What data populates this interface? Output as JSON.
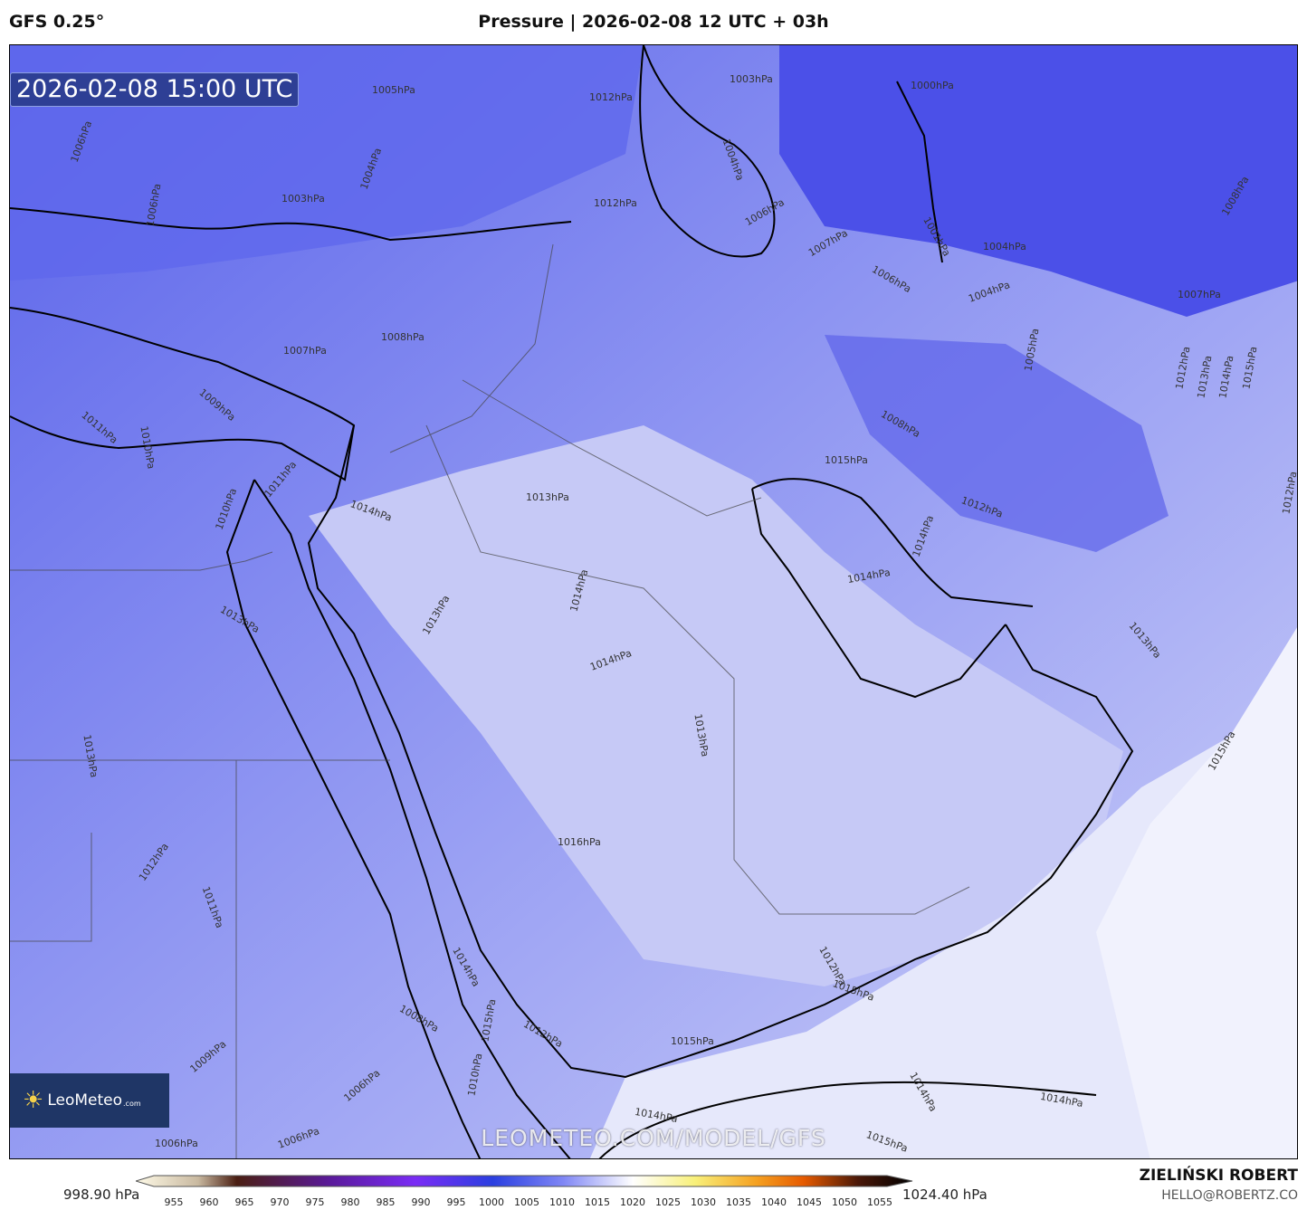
{
  "header": {
    "model": "GFS 0.25°",
    "title": "Pressure | 2026-02-08 12 UTC + 03h"
  },
  "map": {
    "valid_time": "2026-02-08 15:00 UTC",
    "watermark": "LEOMETEO.COM/MODEL/GFS",
    "logo": {
      "name": "LeoMeteo",
      "suffix": ".com"
    },
    "colors": {
      "low": "#4a52e6",
      "mid": "#7e86f0",
      "high": "#c9ccf7",
      "highest": "#eef0fc"
    },
    "contour_labels": [
      "1005hPa",
      "1012hPa",
      "1003hPa",
      "1000hPa",
      "1006hPa",
      "1006hPa",
      "1003hPa",
      "1004hPa",
      "1012hPa",
      "1006hPa",
      "1004hPa",
      "1001hPa",
      "1004hPa",
      "1007hPa",
      "1006hPa",
      "1008hPa",
      "1004hPa",
      "1007hPa",
      "1005hPa",
      "1012hPa",
      "1013hPa",
      "1014hPa",
      "1015hPa",
      "1008hPa",
      "1007hPa",
      "1009hPa",
      "1011hPa",
      "1010hPa",
      "1008hPa",
      "1015hPa",
      "1013hPa",
      "1014hPa",
      "1011hPa",
      "1010hPa",
      "1012hPa",
      "1012hPa",
      "1014hPa",
      "1014hPa",
      "1014hPa",
      "1013hPa",
      "1013hPa",
      "1013hPa",
      "1014hPa",
      "1013hPa",
      "1013hPa",
      "1015hPa",
      "1016hPa",
      "1012hPa",
      "1011hPa",
      "1012hPa",
      "1015hPa",
      "1014hPa",
      "1015hPa",
      "1008hPa",
      "1012hPa",
      "1015hPa",
      "1009hPa",
      "1010hPa",
      "1006hPa",
      "1014hPa",
      "1014hPa",
      "1015hPa",
      "1006hPa",
      "1006hPa",
      "1014hPa"
    ]
  },
  "colorbar": {
    "min_label": "998.90 hPa",
    "max_label": "1024.40 hPa",
    "ticks": [
      "955",
      "960",
      "965",
      "970",
      "975",
      "980",
      "985",
      "990",
      "995",
      "1000",
      "1005",
      "1010",
      "1015",
      "1020",
      "1025",
      "1030",
      "1035",
      "1040",
      "1045",
      "1050",
      "1055"
    ],
    "unit": "hPa"
  },
  "credits": {
    "author": "ZIELIŃSKI ROBERT",
    "email": "HELLO@ROBERTZ.CO"
  }
}
